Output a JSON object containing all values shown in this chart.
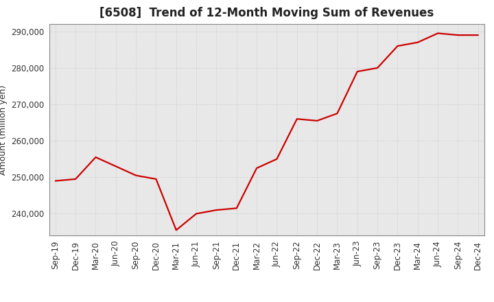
{
  "title": "[6508]  Trend of 12-Month Moving Sum of Revenues",
  "ylabel": "Amount (million yen)",
  "line_color": "#cc0000",
  "background_color": "#ffffff",
  "plot_bg_color": "#e8e8e8",
  "grid_color": "#bbbbbb",
  "title_fontsize": 12,
  "label_fontsize": 9,
  "tick_fontsize": 8.5,
  "ylim": [
    234000,
    292000
  ],
  "yticks": [
    240000,
    250000,
    260000,
    270000,
    280000,
    290000
  ],
  "x_labels": [
    "Sep-19",
    "Dec-19",
    "Mar-20",
    "Jun-20",
    "Sep-20",
    "Dec-20",
    "Mar-21",
    "Jun-21",
    "Sep-21",
    "Dec-21",
    "Mar-22",
    "Jun-22",
    "Sep-22",
    "Dec-22",
    "Mar-23",
    "Jun-23",
    "Sep-23",
    "Dec-23",
    "Mar-24",
    "Jun-24",
    "Sep-24",
    "Dec-24"
  ],
  "values": [
    249000,
    249500,
    255500,
    253000,
    250500,
    249500,
    235500,
    240000,
    241000,
    241500,
    252500,
    255000,
    266000,
    265500,
    267500,
    279000,
    280000,
    286000,
    287000,
    289500,
    289000,
    289000
  ]
}
